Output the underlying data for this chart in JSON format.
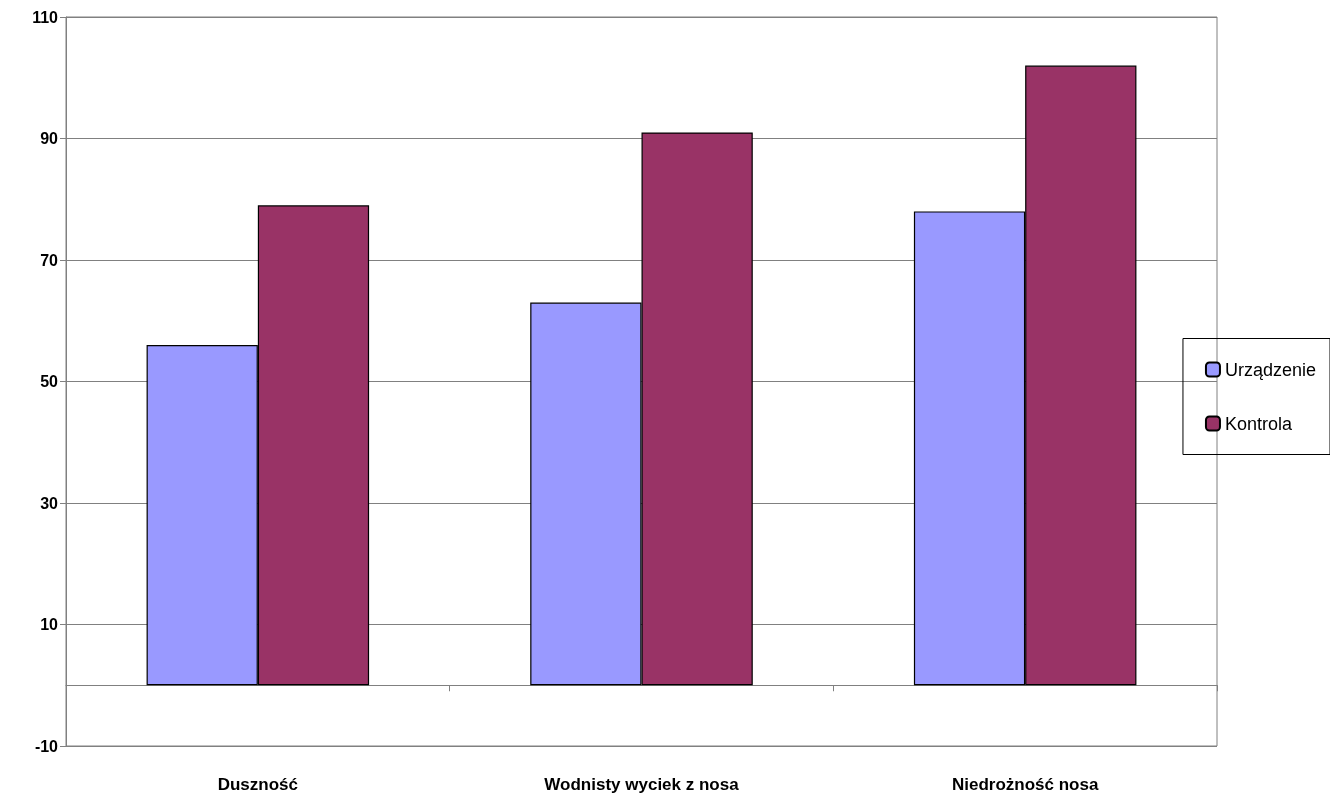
{
  "chart_data": {
    "type": "bar",
    "categories": [
      "Duszność",
      "Wodnisty wyciek z nosa",
      "Niedrożność nosa"
    ],
    "series": [
      {
        "name": "Urządzenie",
        "color": "#9999ff",
        "values": [
          56,
          63,
          78
        ]
      },
      {
        "name": "Kontrola",
        "color": "#993366",
        "values": [
          79,
          91,
          102
        ]
      }
    ],
    "ylim": [
      -10,
      110
    ],
    "yticks": [
      -10,
      10,
      30,
      50,
      70,
      90,
      110
    ],
    "grid": "y",
    "legend": "right"
  }
}
